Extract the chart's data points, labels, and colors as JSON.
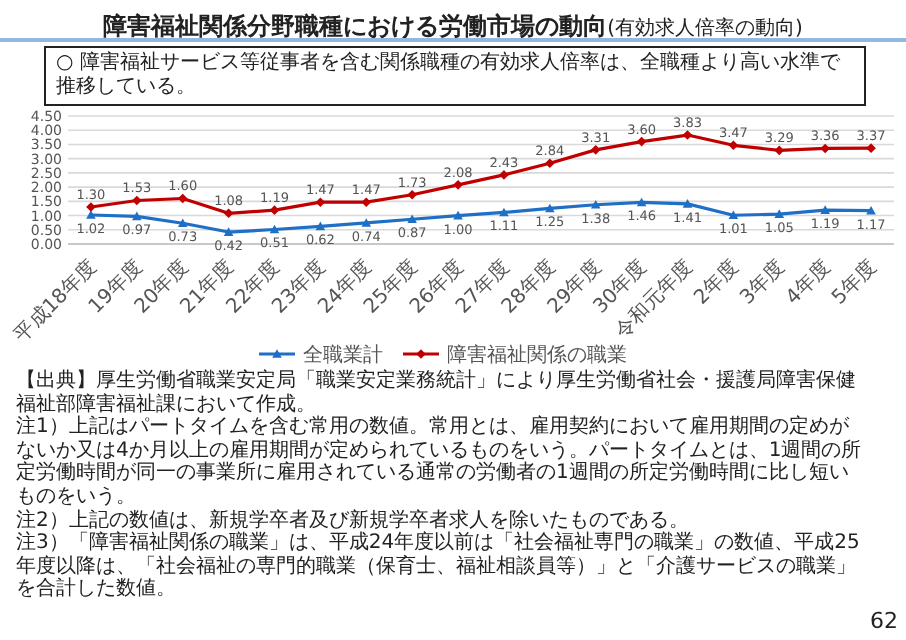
{
  "chart_data": {
    "type": "line",
    "title": "障害福祉関係分野職種における労働市場の動向",
    "subtitle": "(有効求人倍率の動向)",
    "categories": [
      "平成18年度",
      "19年度",
      "20年度",
      "21年度",
      "22年度",
      "23年度",
      "24年度",
      "25年度",
      "26年度",
      "27年度",
      "28年度",
      "29年度",
      "30年度",
      "令和元年度",
      "2年度",
      "3年度",
      "4年度",
      "5年度"
    ],
    "series": [
      {
        "name": "全職業計",
        "color": "#1f6fc6",
        "marker": "triangle",
        "values": [
          1.02,
          0.97,
          0.73,
          0.42,
          0.51,
          0.62,
          0.74,
          0.87,
          1.0,
          1.11,
          1.25,
          1.38,
          1.46,
          1.41,
          1.01,
          1.05,
          1.19,
          1.17
        ],
        "value_labels": [
          "1.02",
          "0.97",
          "0.73",
          "0.42",
          "0.51",
          "0.62",
          "0.74",
          "0.87",
          "1.00",
          "1.11",
          "1.25",
          "1.38",
          "1.46",
          "1.41",
          "1.01",
          "1.05",
          "1.19",
          "1.17"
        ]
      },
      {
        "name": "障害福祉関係の職業",
        "color": "#c00000",
        "marker": "diamond",
        "values": [
          1.3,
          1.53,
          1.6,
          1.08,
          1.19,
          1.47,
          1.47,
          1.73,
          2.08,
          2.43,
          2.84,
          3.31,
          3.6,
          3.83,
          3.47,
          3.29,
          3.36,
          3.37
        ],
        "value_labels": [
          "1.30",
          "1.53",
          "1.60",
          "1.08",
          "1.19",
          "1.47",
          "1.47",
          "1.73",
          "2.08",
          "2.43",
          "2.84",
          "3.31",
          "3.60",
          "3.83",
          "3.47",
          "3.29",
          "3.36",
          "3.37"
        ]
      }
    ],
    "ylim": [
      0,
      4.5
    ],
    "yticks": [
      {
        "value": 0,
        "label": "0.00"
      },
      {
        "value": 0.5,
        "label": "0.50"
      },
      {
        "value": 1,
        "label": "1.00"
      },
      {
        "value": 1.5,
        "label": "1.50"
      },
      {
        "value": 2,
        "label": "2.00"
      },
      {
        "value": 2.5,
        "label": "2.50"
      },
      {
        "value": 3,
        "label": "3.00"
      },
      {
        "value": 3.5,
        "label": "3.50"
      },
      {
        "value": 4,
        "label": "4.00"
      },
      {
        "value": 4.5,
        "label": "4.50"
      }
    ],
    "grid": "y",
    "legend": "bottom",
    "annotations": [
      "○ 障害福祉サービス等従事者を含む関係職種の有効求人倍率は、全職種より高い水準で推移している。",
      "【出典】厚生労働省職業安定局「職業安定業務統計」により厚生労働省社会・援護局障害保健福祉部障害福祉課において作成。",
      "注1）上記はパートタイムを含む常用の数値。常用とは、雇用契約において雇用期間の定めがないか又は4か月以上の雇用期間が定められているものをいう。パートタイムとは、1週間の所定労働時間が同一の事業所に雇用されている通常の労働者の1週間の所定労働時間に比し短いものをいう。",
      "注2）上記の数値は、新規学卒者及び新規学卒者求人を除いたものである。",
      "注3）「障害福祉関係の職業」は、平成24年度以前は「社会福祉専門の職業」の数値、平成25年度以降は、「社会福祉の専門的職業（保育士、福祉相談員等）」と「介護サービスの職業」を合計した数値。",
      "62"
    ]
  }
}
